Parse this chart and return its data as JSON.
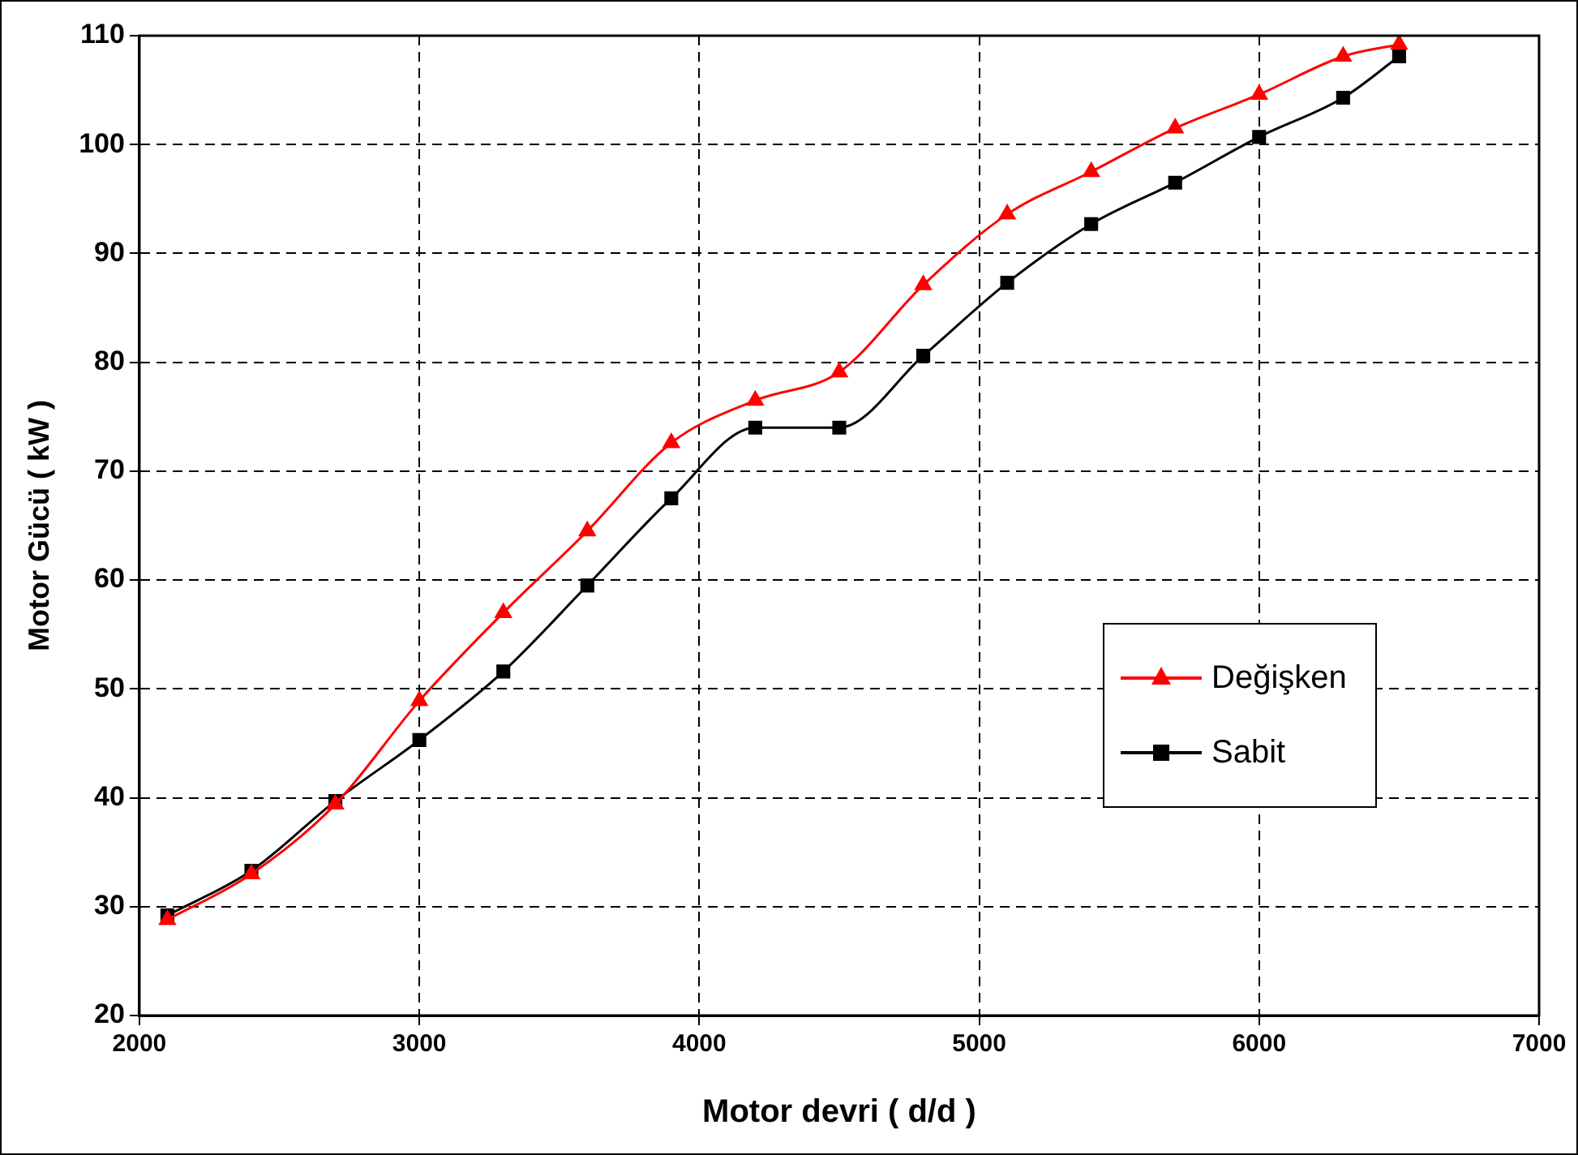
{
  "chart_data": {
    "type": "line",
    "xlabel": "Motor devri ( d/d )",
    "ylabel": "Motor Gücü ( kW )",
    "x": [
      2100,
      2400,
      2700,
      3000,
      3300,
      3600,
      3900,
      4200,
      4500,
      4800,
      5100,
      5400,
      5700,
      6000,
      6300,
      6500
    ],
    "series": [
      {
        "name": "Değişken",
        "color": "#ff0000",
        "marker": "triangle",
        "values": [
          28.8,
          33.0,
          39.4,
          48.9,
          57.0,
          64.5,
          72.6,
          76.5,
          79.1,
          87.1,
          93.6,
          97.5,
          101.5,
          104.6,
          108.1,
          109.2
        ]
      },
      {
        "name": "Sabit",
        "color": "#000000",
        "marker": "square",
        "values": [
          29.2,
          33.3,
          39.7,
          45.3,
          51.6,
          59.5,
          67.5,
          74.0,
          74.0,
          80.6,
          87.3,
          92.7,
          96.5,
          100.7,
          104.3,
          108.1
        ]
      }
    ],
    "xlim": [
      2000,
      7000
    ],
    "xticks": [
      2000,
      3000,
      4000,
      5000,
      6000,
      7000
    ],
    "ylim": [
      20,
      110
    ],
    "yticks": [
      20,
      30,
      40,
      50,
      60,
      70,
      80,
      90,
      100,
      110
    ],
    "grid": true,
    "legend": "right",
    "line_style": "solid"
  }
}
